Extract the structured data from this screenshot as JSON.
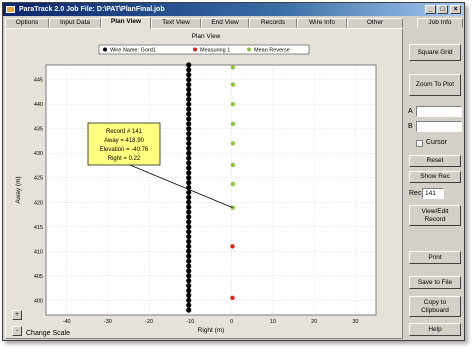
{
  "window": {
    "title": "ParaTrack 2.0  Job File: D:\\PAT\\PlanFinal.job",
    "controls": [
      "_",
      "□",
      "×"
    ]
  },
  "tabs": [
    {
      "label": "Options",
      "active": false
    },
    {
      "label": "Input Data",
      "active": false
    },
    {
      "label": "Plan View",
      "active": true
    },
    {
      "label": "Text View",
      "active": false
    },
    {
      "label": "End View",
      "active": false
    },
    {
      "label": "Records",
      "active": false
    },
    {
      "label": "Wire Info",
      "active": false
    },
    {
      "label": "Other",
      "active": false
    },
    {
      "label": "Job Info",
      "active": false
    }
  ],
  "controls": {
    "scale_up": "+",
    "scale_down": "-",
    "change_scale": "Change Scale"
  },
  "chart_data": {
    "type": "scatter",
    "title": "Plan View",
    "xlabel": "Right (m)",
    "ylabel": "Away (m)",
    "xlim": [
      -45,
      35
    ],
    "ylim": [
      397,
      448
    ],
    "xticks": [
      -40,
      -30,
      -20,
      -10,
      0,
      10,
      20,
      30
    ],
    "yticks": [
      400,
      405,
      410,
      415,
      420,
      425,
      430,
      435,
      440,
      445
    ],
    "grid": true,
    "legend_position": "top",
    "series": [
      {
        "name": "Wire Name: Gord1",
        "color": "#000000",
        "x": [
          -10.4,
          -10.4,
          -10.4,
          -10.4,
          -10.4,
          -10.4,
          -10.4,
          -10.4,
          -10.4,
          -10.4,
          -10.4,
          -10.4,
          -10.4,
          -10.4,
          -10.4,
          -10.4,
          -10.4,
          -10.4,
          -10.4,
          -10.4,
          -10.4,
          -10.4,
          -10.4,
          -10.4,
          -10.4,
          -10.4,
          -10.4,
          -10.4,
          -10.4,
          -10.4,
          -10.4,
          -10.4,
          -10.4,
          -10.4,
          -10.4,
          -10.4,
          -10.4,
          -10.4,
          -10.4,
          -10.4,
          -10.4,
          -10.4,
          -10.4,
          -10.4,
          -10.4,
          -10.4,
          -10.4,
          -10.4,
          -10.4,
          -10.4,
          -10.4
        ],
        "y": [
          398,
          399,
          400,
          401,
          402,
          403,
          404,
          405,
          406,
          407,
          408,
          409,
          410,
          411,
          412,
          413,
          414,
          415,
          416,
          417,
          418,
          419,
          420,
          421,
          422,
          423,
          424,
          425,
          426,
          427,
          428,
          429,
          430,
          431,
          432,
          433,
          434,
          435,
          436,
          437,
          438,
          439,
          440,
          441,
          442,
          443,
          444,
          445,
          446,
          447,
          448
        ]
      },
      {
        "name": "Measuring 1",
        "color": "#e02020",
        "x": [
          0.2,
          0.2
        ],
        "y": [
          400.5,
          411.0
        ]
      },
      {
        "name": "Mean Reverse",
        "color": "#8cc63f",
        "x": [
          0.3,
          0.3,
          0.3,
          0.3,
          0.3,
          0.3,
          0.3,
          0.3
        ],
        "y": [
          418.9,
          423.7,
          427.6,
          432.0,
          436.0,
          440.0,
          444.0,
          447.5
        ]
      }
    ],
    "annotation": {
      "lines": [
        "Record # 141",
        "Away = 418.90",
        "Elevation = -40.76",
        "Right = 0.22"
      ],
      "point": {
        "x": 0.22,
        "y": 418.9
      }
    }
  },
  "sidebar": {
    "square_grid": "Square Grid",
    "zoom_to_plot": "Zoom To Plot",
    "a_label": "A",
    "b_label": "B",
    "a_value": "",
    "b_value": "",
    "cursor_label": "Cursor",
    "reset": "Reset",
    "show_rec": "Show Rec",
    "rec_label": "Rec",
    "rec_value": "141",
    "view_edit_record": "View/Edit Record",
    "print": "Print",
    "save_to_file": "Save to File",
    "copy_to_clipboard": "Copy to Clipboard",
    "help": "Help"
  }
}
